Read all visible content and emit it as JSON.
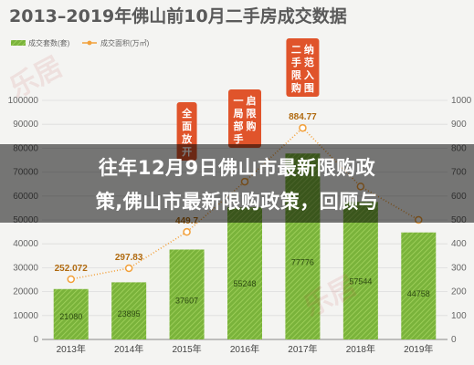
{
  "watermark": "乐居",
  "headline": {
    "line1": "往年12月9日佛山市最新限购政",
    "line2": "策,佛山市最新限购政策，回顾与"
  },
  "colors": {
    "bar": "#7ab33b",
    "bar_stripe": "#9fd15a",
    "line": "#f2a03a",
    "tag_bg": "#e0542b",
    "title": "#5a5a5a"
  },
  "chart_data": {
    "type": "bar",
    "title": "2013–2019年佛山前10月二手房成交数据",
    "categories": [
      "2013年",
      "2014年",
      "2015年",
      "2016年",
      "2017年",
      "2018年",
      "2019年"
    ],
    "series": [
      {
        "name": "成交套数(套)",
        "type": "bar",
        "values": [
          21080,
          23895,
          37607,
          55248,
          77776,
          57544,
          44758
        ],
        "labels": [
          "21080",
          "23895",
          "37607",
          "55248",
          "77776",
          "57544",
          "44758"
        ]
      },
      {
        "name": "成交面积(万㎡)",
        "type": "line",
        "values": [
          252.072,
          297.83,
          449.7,
          660,
          884.77,
          640,
          500
        ],
        "labels": [
          "252.072",
          "297.83",
          "449.7",
          "",
          "884.77",
          "",
          ""
        ]
      }
    ],
    "yaxis": {
      "ticks": [
        "0",
        "10000",
        "20000",
        "30000",
        "40000",
        "50000",
        "60000",
        "70000",
        "80000",
        "90000",
        "100000"
      ],
      "ylim": [
        0,
        100000
      ]
    },
    "y2axis": {
      "ticks": [
        "0",
        "100",
        "200",
        "300",
        "400",
        "500",
        "600",
        "700",
        "800",
        "900",
        "1000"
      ],
      "ylim": [
        0,
        1000
      ]
    },
    "annotations": [
      {
        "category": "2015年",
        "text": "全面放开"
      },
      {
        "category": "2016年",
        "text": "一局部手启限购"
      },
      {
        "category": "2017年",
        "text": "二手限购纳范入围"
      }
    ],
    "legend": "top-left",
    "grid": true
  }
}
